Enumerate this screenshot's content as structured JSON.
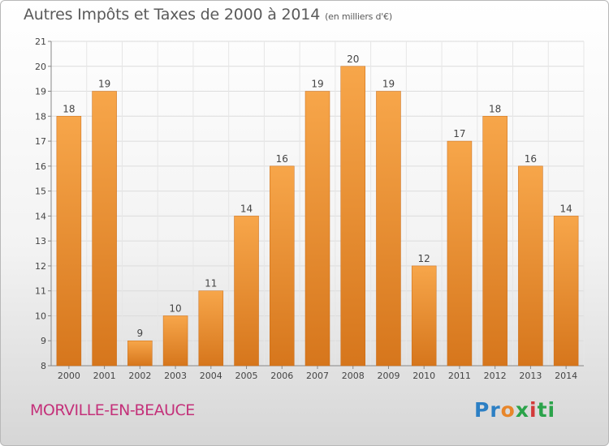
{
  "chart_data": {
    "type": "bar",
    "title": "Autres Impôts et Taxes de 2000 à 2014",
    "unit_note": "(en milliers d'€)",
    "categories": [
      "2000",
      "2001",
      "2002",
      "2003",
      "2004",
      "2005",
      "2006",
      "2007",
      "2008",
      "2009",
      "2010",
      "2011",
      "2012",
      "2013",
      "2014"
    ],
    "values": [
      18,
      19,
      9,
      10,
      11,
      14,
      16,
      19,
      20,
      19,
      12,
      17,
      18,
      16,
      14
    ],
    "ylim": [
      8,
      21
    ],
    "yticks": [
      8,
      9,
      10,
      11,
      12,
      13,
      14,
      15,
      16,
      17,
      18,
      19,
      20,
      21
    ],
    "grid": true,
    "bar_color": "#f0922f"
  },
  "commune": "MORVILLE-EN-BEAUCE",
  "logo": [
    "Pr",
    "o",
    "x",
    "i",
    "ti"
  ]
}
